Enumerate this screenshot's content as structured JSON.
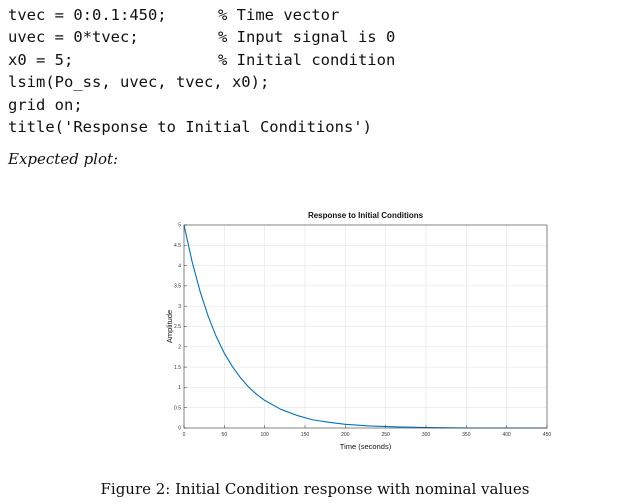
{
  "code": {
    "lines": [
      {
        "stmt": "tvec = 0:0.1:450;",
        "comment": "% Time vector"
      },
      {
        "stmt": "uvec = 0*tvec;",
        "comment": "% Input signal is 0"
      },
      {
        "stmt": "x0 = 5;",
        "comment": "% Initial condition"
      },
      {
        "stmt": "lsim(Po_ss, uvec, tvec, x0);",
        "comment": ""
      },
      {
        "stmt": "grid on;",
        "comment": ""
      },
      {
        "stmt": "title('Response to Initial Conditions')",
        "comment": ""
      }
    ]
  },
  "expected_label": "Expected plot:",
  "caption": "Figure 2: Initial Condition response with nominal values",
  "chart_data": {
    "type": "line",
    "title": "Response to Initial Conditions",
    "xlabel": "Time (seconds)",
    "ylabel": "Amplitude",
    "xlim": [
      0,
      450
    ],
    "ylim": [
      0,
      5
    ],
    "xticks": [
      0,
      50,
      100,
      150,
      200,
      250,
      300,
      350,
      400,
      450
    ],
    "yticks": [
      0,
      0.5,
      1,
      1.5,
      2,
      2.5,
      3,
      3.5,
      4,
      4.5,
      5
    ],
    "xtick_labels": [
      "0",
      "50",
      "100",
      "150",
      "200",
      "250",
      "300",
      "350",
      "400",
      "450"
    ],
    "ytick_labels": [
      "0",
      "0.5",
      "1",
      "1.5",
      "2",
      "2.5",
      "3",
      "3.5",
      "4",
      "4.5",
      "5"
    ],
    "grid": true,
    "line_color": "#0072BD",
    "series": [
      {
        "x": [
          0,
          10,
          20,
          30,
          40,
          50,
          60,
          70,
          80,
          90,
          100,
          120,
          140,
          160,
          180,
          200,
          230,
          260,
          300,
          350,
          400,
          450
        ],
        "values": [
          5.0,
          4.1,
          3.36,
          2.75,
          2.25,
          1.84,
          1.51,
          1.24,
          1.01,
          0.83,
          0.68,
          0.46,
          0.31,
          0.2,
          0.14,
          0.09,
          0.05,
          0.03,
          0.01,
          0.0,
          0.0,
          0.0
        ]
      }
    ]
  }
}
